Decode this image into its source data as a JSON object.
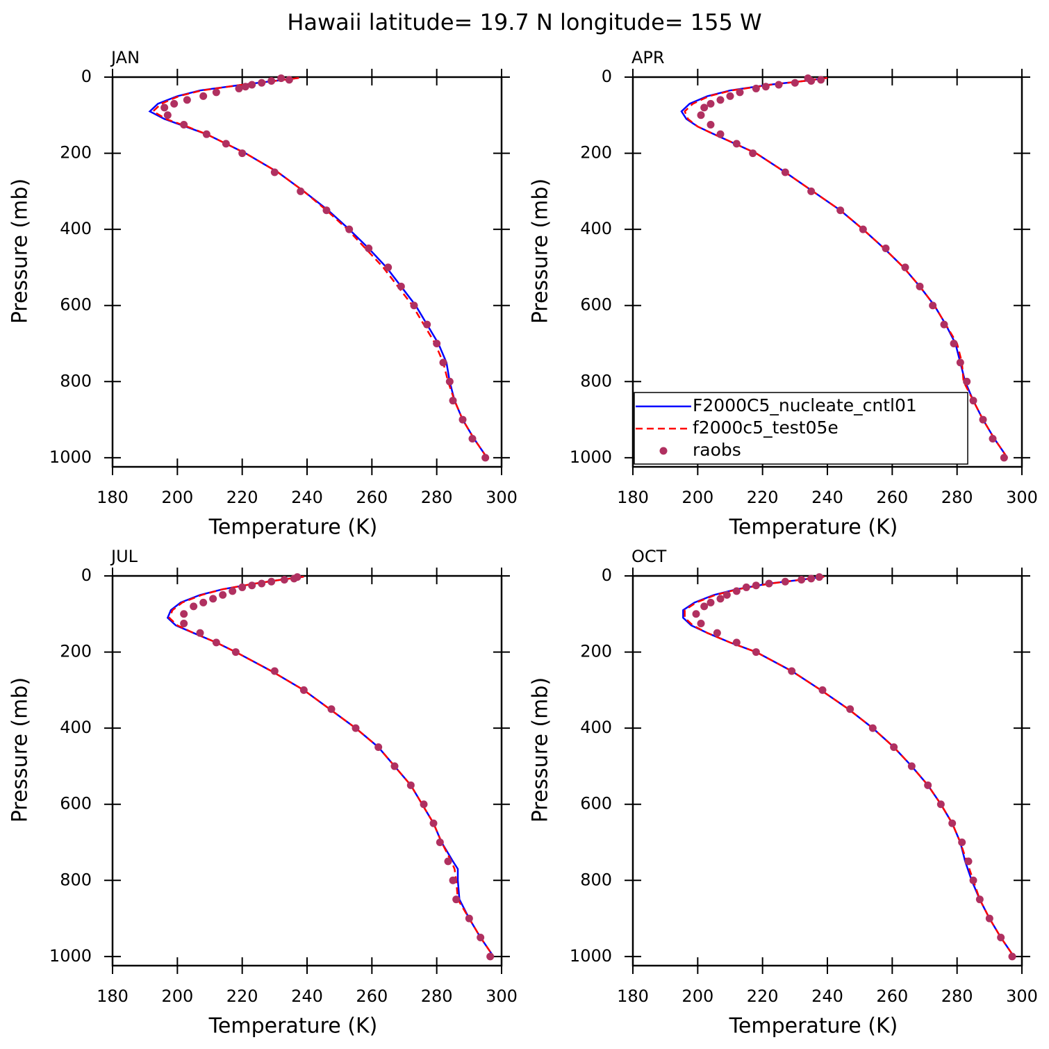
{
  "title": "Hawaii  latitude= 19.7 N longitude= 155 W",
  "chart_data": [
    {
      "type": "line",
      "title": "JAN",
      "x_label": "Temperature (K)",
      "y_label": "Pressure (mb)",
      "xlim": [
        180,
        300
      ],
      "xticks": [
        180,
        200,
        220,
        240,
        260,
        280,
        300
      ],
      "ylim": [
        1024,
        0
      ],
      "yticks": [
        0,
        200,
        400,
        600,
        800,
        1000
      ],
      "series": [
        {
          "name": "F2000C5_nucleate_cntl01",
          "color": "#0000ff",
          "style": "solid",
          "y": [
            2,
            10,
            20,
            35,
            50,
            70,
            90,
            110,
            130,
            150,
            175,
            200,
            250,
            300,
            350,
            400,
            450,
            500,
            550,
            600,
            650,
            700,
            750,
            800,
            850,
            900,
            950,
            1000
          ],
          "values": [
            237.5,
            230,
            220,
            207,
            200,
            194,
            191.5,
            196,
            202.5,
            209,
            215,
            221,
            231,
            239,
            246.5,
            253,
            259,
            264.5,
            269,
            273.5,
            277,
            280.5,
            283,
            284,
            285.5,
            288,
            291.5,
            295.5
          ]
        },
        {
          "name": "f2000c5_test05e",
          "color": "#ff0000",
          "style": "dashed",
          "y": [
            2,
            10,
            20,
            35,
            50,
            70,
            90,
            110,
            130,
            150,
            175,
            200,
            250,
            300,
            350,
            400,
            450,
            500,
            550,
            600,
            650,
            700,
            750,
            800,
            850,
            900,
            950,
            1000
          ],
          "values": [
            237.5,
            230,
            220,
            207.5,
            200.5,
            195,
            192.5,
            196.5,
            203,
            209,
            215,
            221,
            231,
            239,
            246,
            252.5,
            258,
            263.5,
            268,
            272.5,
            276,
            279.5,
            282,
            283.5,
            285.5,
            288,
            291.5,
            295.5
          ]
        },
        {
          "name": "raobs",
          "color": "#b03060",
          "style": "markers",
          "y": [
            3,
            7,
            10,
            15,
            20,
            25,
            30,
            40,
            50,
            60,
            70,
            80,
            100,
            125,
            150,
            175,
            200,
            250,
            300,
            350,
            400,
            450,
            500,
            550,
            600,
            650,
            700,
            750,
            800,
            850,
            900,
            950,
            1000
          ],
          "values": [
            232,
            234.5,
            229,
            226,
            223,
            221,
            219,
            212,
            208,
            203,
            199,
            196,
            197,
            202,
            209,
            215,
            220,
            230,
            238,
            246,
            253,
            259,
            265,
            269,
            273,
            277,
            280,
            282,
            284,
            285,
            288,
            291,
            295
          ]
        }
      ]
    },
    {
      "type": "line",
      "title": "APR",
      "x_label": "Temperature (K)",
      "y_label": "Pressure (mb)",
      "xlim": [
        180,
        300
      ],
      "xticks": [
        180,
        200,
        220,
        240,
        260,
        280,
        300
      ],
      "ylim": [
        1024,
        0
      ],
      "yticks": [
        0,
        200,
        400,
        600,
        800,
        1000
      ],
      "legend": "lower left",
      "series": [
        {
          "name": "F2000C5_nucleate_cntl01",
          "color": "#0000ff",
          "style": "solid",
          "y": [
            2,
            10,
            20,
            35,
            50,
            70,
            90,
            110,
            130,
            150,
            175,
            200,
            250,
            300,
            350,
            400,
            450,
            500,
            550,
            600,
            650,
            700,
            750,
            800,
            850,
            900,
            950,
            1000
          ],
          "values": [
            240,
            233,
            222,
            210,
            203,
            197.5,
            195,
            196.5,
            200,
            205,
            211.5,
            218,
            227,
            235.5,
            244,
            251,
            257.5,
            263.5,
            268.5,
            273,
            276.5,
            279.5,
            281,
            282.5,
            285,
            288,
            291.5,
            295.5
          ]
        },
        {
          "name": "f2000c5_test05e",
          "color": "#ff0000",
          "style": "dashed",
          "y": [
            2,
            10,
            20,
            35,
            50,
            70,
            90,
            110,
            130,
            150,
            175,
            200,
            250,
            300,
            350,
            400,
            450,
            500,
            550,
            600,
            650,
            700,
            750,
            800,
            850,
            900,
            950,
            1000
          ],
          "values": [
            240,
            233,
            222.5,
            210.5,
            203.5,
            198.5,
            196,
            197,
            200,
            205,
            211.5,
            218,
            227,
            235.5,
            244,
            251,
            257.5,
            263.5,
            268.5,
            273,
            276.5,
            280,
            281.5,
            282,
            285,
            288,
            291.5,
            295.5
          ]
        },
        {
          "name": "raobs",
          "color": "#b03060",
          "style": "markers",
          "y": [
            3,
            7,
            10,
            15,
            20,
            25,
            30,
            40,
            50,
            60,
            70,
            80,
            100,
            125,
            150,
            175,
            200,
            250,
            300,
            350,
            400,
            450,
            500,
            550,
            600,
            650,
            700,
            750,
            800,
            850,
            900,
            950,
            1000
          ],
          "values": [
            234,
            238,
            235,
            230,
            225,
            221,
            218,
            213,
            210,
            207,
            204,
            202,
            201,
            204,
            207,
            212,
            217,
            227,
            235,
            244,
            251,
            258,
            264,
            268.5,
            272.5,
            276,
            279,
            281,
            283,
            285,
            288,
            291,
            294.5
          ]
        }
      ]
    },
    {
      "type": "line",
      "title": "JUL",
      "x_label": "Temperature (K)",
      "y_label": "Pressure (mb)",
      "xlim": [
        180,
        300
      ],
      "xticks": [
        180,
        200,
        220,
        240,
        260,
        280,
        300
      ],
      "ylim": [
        1024,
        0
      ],
      "yticks": [
        0,
        200,
        400,
        600,
        800,
        1000
      ],
      "series": [
        {
          "name": "F2000C5_nucleate_cntl01",
          "color": "#0000ff",
          "style": "solid",
          "y": [
            2,
            10,
            20,
            35,
            50,
            70,
            90,
            110,
            130,
            150,
            175,
            200,
            250,
            300,
            350,
            400,
            450,
            500,
            550,
            600,
            650,
            700,
            750,
            770,
            800,
            850,
            900,
            950,
            1000
          ],
          "values": [
            239,
            232,
            224,
            214,
            207,
            201,
            198,
            197,
            199.5,
            205,
            212,
            218,
            229,
            239,
            247,
            255,
            262,
            267,
            272,
            275.5,
            279,
            281.5,
            285,
            286.5,
            286.5,
            287,
            290,
            293.5,
            297.5
          ]
        },
        {
          "name": "f2000c5_test05e",
          "color": "#ff0000",
          "style": "dashed",
          "y": [
            2,
            10,
            20,
            35,
            50,
            70,
            90,
            110,
            130,
            150,
            175,
            200,
            250,
            300,
            350,
            400,
            450,
            500,
            550,
            600,
            650,
            700,
            750,
            770,
            800,
            850,
            900,
            950,
            1000
          ],
          "values": [
            239,
            232,
            224,
            214,
            207.5,
            201.5,
            198.5,
            197.5,
            200,
            205,
            212,
            218,
            229,
            239,
            247,
            255,
            262,
            267,
            272,
            275.5,
            279,
            281.5,
            284.5,
            285.5,
            286,
            286.5,
            290,
            293.5,
            297.5
          ]
        },
        {
          "name": "raobs",
          "color": "#b03060",
          "style": "markers",
          "y": [
            3,
            7,
            10,
            15,
            20,
            25,
            30,
            40,
            50,
            60,
            70,
            80,
            100,
            125,
            150,
            175,
            200,
            250,
            300,
            350,
            400,
            450,
            500,
            550,
            600,
            650,
            700,
            750,
            800,
            850,
            900,
            950,
            1000
          ],
          "values": [
            237,
            236,
            233,
            229,
            226,
            223,
            220,
            217,
            214,
            211,
            208,
            205,
            202,
            202,
            207,
            212,
            218,
            230,
            239,
            247.5,
            255,
            262,
            267,
            272,
            276,
            279,
            281,
            283.5,
            285,
            286,
            290,
            293.5,
            296.5
          ]
        }
      ]
    },
    {
      "type": "line",
      "title": "OCT",
      "x_label": "Temperature (K)",
      "y_label": "Pressure (mb)",
      "xlim": [
        180,
        300
      ],
      "xticks": [
        180,
        200,
        220,
        240,
        260,
        280,
        300
      ],
      "ylim": [
        1024,
        0
      ],
      "yticks": [
        0,
        200,
        400,
        600,
        800,
        1000
      ],
      "series": [
        {
          "name": "F2000C5_nucleate_cntl01",
          "color": "#0000ff",
          "style": "solid",
          "y": [
            2,
            10,
            20,
            35,
            50,
            70,
            90,
            110,
            130,
            150,
            175,
            200,
            250,
            300,
            350,
            400,
            450,
            500,
            550,
            600,
            650,
            700,
            750,
            800,
            850,
            900,
            950,
            1000
          ],
          "values": [
            239,
            232,
            222,
            212,
            205,
            199,
            195.5,
            195.5,
            198,
            203,
            210,
            218,
            229,
            238,
            246.5,
            254,
            260.5,
            266,
            271,
            275,
            278.5,
            281,
            282.5,
            284.5,
            287,
            290,
            293.5,
            297.5
          ]
        },
        {
          "name": "f2000c5_test05e",
          "color": "#ff0000",
          "style": "dashed",
          "y": [
            2,
            10,
            20,
            35,
            50,
            70,
            90,
            110,
            130,
            150,
            175,
            200,
            250,
            300,
            350,
            400,
            450,
            500,
            550,
            600,
            650,
            700,
            750,
            800,
            850,
            900,
            950,
            1000
          ],
          "values": [
            239,
            232,
            222.5,
            212.5,
            205.5,
            199.5,
            196,
            196,
            198.5,
            203,
            210,
            218,
            229,
            238,
            246.5,
            254,
            260.5,
            266,
            271,
            275,
            278.5,
            281,
            283,
            285,
            287,
            290,
            293.5,
            297.5
          ]
        },
        {
          "name": "raobs",
          "color": "#b03060",
          "style": "markers",
          "y": [
            3,
            7,
            10,
            15,
            20,
            25,
            30,
            40,
            50,
            60,
            70,
            80,
            100,
            125,
            150,
            175,
            200,
            250,
            300,
            350,
            400,
            450,
            500,
            550,
            600,
            650,
            700,
            750,
            800,
            850,
            900,
            950,
            1000
          ],
          "values": [
            237.5,
            235,
            232,
            227,
            222,
            218,
            215,
            212,
            209,
            207,
            204,
            202,
            199.5,
            201,
            206,
            212,
            218,
            229,
            238.5,
            247,
            254,
            260.5,
            266,
            271,
            275,
            278.5,
            281.5,
            283.5,
            285,
            287,
            290,
            293.5,
            297
          ]
        }
      ]
    }
  ]
}
